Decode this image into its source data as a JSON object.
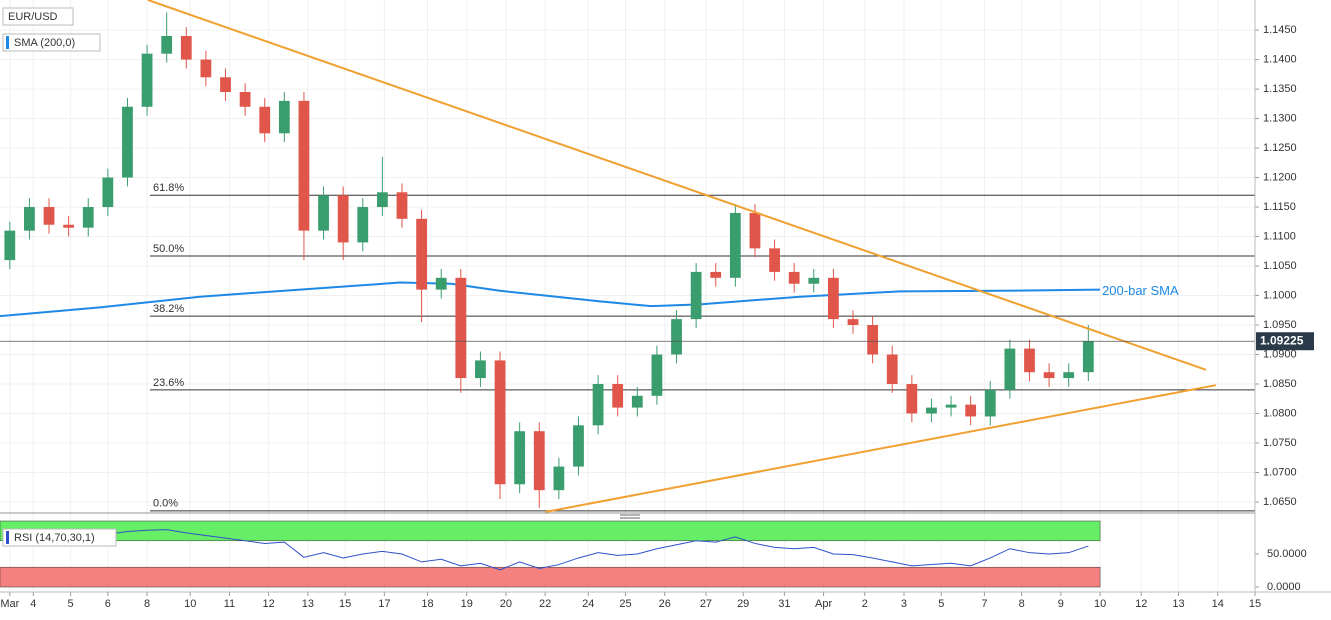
{
  "chart_data": {
    "type": "candlestick",
    "title": "EUR/USD",
    "up_color": "#3a9d6e",
    "down_color": "#e0564a",
    "xlim": [
      0,
      64
    ],
    "ylim": [
      1.0633,
      1.1501
    ],
    "grid": true,
    "xticks": [
      {
        "value": 0.5,
        "label": "Mar"
      },
      {
        "value": 1.7,
        "label": "4"
      },
      {
        "value": 3.6,
        "label": "5"
      },
      {
        "value": 5.5,
        "label": "6"
      },
      {
        "value": 7.5,
        "label": "8"
      },
      {
        "value": 9.7,
        "label": "10"
      },
      {
        "value": 11.7,
        "label": "11"
      },
      {
        "value": 13.7,
        "label": "12"
      },
      {
        "value": 15.7,
        "label": "13"
      },
      {
        "value": 17.6,
        "label": "15"
      },
      {
        "value": 19.6,
        "label": "17"
      },
      {
        "value": 21.8,
        "label": "18"
      },
      {
        "value": 23.8,
        "label": "19"
      },
      {
        "value": 25.8,
        "label": "20"
      },
      {
        "value": 27.8,
        "label": "22"
      },
      {
        "value": 30,
        "label": "24"
      },
      {
        "value": 31.9,
        "label": "25"
      },
      {
        "value": 33.9,
        "label": "26"
      },
      {
        "value": 36,
        "label": "27"
      },
      {
        "value": 37.9,
        "label": "29"
      },
      {
        "value": 40,
        "label": "31"
      },
      {
        "value": 42,
        "label": "Apr"
      },
      {
        "value": 44.1,
        "label": "2"
      },
      {
        "value": 46.1,
        "label": "3"
      },
      {
        "value": 48,
        "label": "5"
      },
      {
        "value": 50.2,
        "label": "7"
      },
      {
        "value": 52.1,
        "label": "8"
      },
      {
        "value": 54.1,
        "label": "9"
      },
      {
        "value": 56.1,
        "label": "10"
      },
      {
        "value": 58.2,
        "label": "12"
      },
      {
        "value": 60.1,
        "label": "13"
      },
      {
        "value": 62.1,
        "label": "14"
      },
      {
        "value": 64,
        "label": "15"
      }
    ],
    "yticks": [
      {
        "value": 1.065,
        "label": "1.0650"
      },
      {
        "value": 1.07,
        "label": "1.0700"
      },
      {
        "value": 1.075,
        "label": "1.0750"
      },
      {
        "value": 1.08,
        "label": "1.0800"
      },
      {
        "value": 1.085,
        "label": "1.0850"
      },
      {
        "value": 1.09,
        "label": "1.0900"
      },
      {
        "value": 1.095,
        "label": "1.0950"
      },
      {
        "value": 1.1,
        "label": "1.1000"
      },
      {
        "value": 1.105,
        "label": "1.1050"
      },
      {
        "value": 1.11,
        "label": "1.1100"
      },
      {
        "value": 1.115,
        "label": "1.1150"
      },
      {
        "value": 1.12,
        "label": "1.1200"
      },
      {
        "value": 1.125,
        "label": "1.1250"
      },
      {
        "value": 1.13,
        "label": "1.1300"
      },
      {
        "value": 1.135,
        "label": "1.1350"
      },
      {
        "value": 1.14,
        "label": "1.1400"
      },
      {
        "value": 1.145,
        "label": "1.1450"
      }
    ],
    "open": [
      1.106,
      1.111,
      1.115,
      1.112,
      1.1115,
      1.115,
      1.12,
      1.132,
      1.141,
      1.144,
      1.14,
      1.137,
      1.1345,
      1.132,
      1.1275,
      1.133,
      1.111,
      1.117,
      1.109,
      1.115,
      1.1175,
      1.113,
      1.101,
      1.103,
      1.086,
      1.089,
      1.068,
      1.077,
      1.067,
      1.071,
      1.078,
      1.085,
      1.081,
      1.083,
      1.09,
      1.096,
      1.104,
      1.103,
      1.114,
      1.108,
      1.104,
      1.102,
      1.103,
      1.096,
      1.095,
      1.09,
      1.085,
      1.08,
      1.081,
      1.0815,
      1.0795,
      1.084,
      1.091,
      1.087,
      1.086,
      1.087
    ],
    "high": [
      1.1125,
      1.1165,
      1.1165,
      1.1135,
      1.1165,
      1.1215,
      1.1335,
      1.1425,
      1.148,
      1.1455,
      1.1415,
      1.1385,
      1.136,
      1.1335,
      1.1345,
      1.1345,
      1.1185,
      1.1185,
      1.1165,
      1.1235,
      1.119,
      1.1145,
      1.1045,
      1.1045,
      1.0905,
      1.0905,
      1.0785,
      1.0785,
      1.0725,
      1.0795,
      1.0865,
      1.0865,
      1.0845,
      1.0915,
      1.0975,
      1.1055,
      1.1055,
      1.1155,
      1.1155,
      1.1095,
      1.1055,
      1.1045,
      1.1045,
      1.0975,
      1.0965,
      1.0915,
      1.0865,
      1.0825,
      1.083,
      1.083,
      1.0855,
      1.0925,
      1.0925,
      1.0885,
      1.0885,
      1.095
    ],
    "low": [
      1.1045,
      1.1095,
      1.1105,
      1.11,
      1.11,
      1.1135,
      1.1185,
      1.1305,
      1.1395,
      1.1385,
      1.1355,
      1.133,
      1.1305,
      1.126,
      1.126,
      1.106,
      1.1095,
      1.106,
      1.1075,
      1.1135,
      1.1115,
      1.0955,
      1.0995,
      1.0835,
      1.0845,
      1.0655,
      1.0665,
      1.064,
      1.0655,
      1.0695,
      1.0765,
      1.0795,
      1.0795,
      1.0815,
      1.0885,
      1.0945,
      1.1015,
      1.1015,
      1.1065,
      1.1025,
      1.1005,
      1.1005,
      1.0945,
      1.0935,
      1.0885,
      1.0835,
      1.0785,
      1.0785,
      1.0795,
      1.078,
      1.078,
      1.0825,
      1.0855,
      1.0845,
      1.0845,
      1.0855
    ],
    "close": [
      1.111,
      1.115,
      1.112,
      1.1115,
      1.115,
      1.12,
      1.132,
      1.141,
      1.144,
      1.14,
      1.137,
      1.1345,
      1.132,
      1.1275,
      1.133,
      1.111,
      1.117,
      1.109,
      1.115,
      1.1175,
      1.113,
      1.101,
      1.103,
      1.086,
      1.089,
      1.068,
      1.077,
      1.067,
      1.071,
      1.078,
      1.085,
      1.081,
      1.083,
      1.09,
      1.096,
      1.104,
      1.103,
      1.114,
      1.108,
      1.104,
      1.102,
      1.103,
      1.096,
      1.095,
      1.09,
      1.085,
      1.08,
      1.081,
      1.0815,
      1.0795,
      1.084,
      1.091,
      1.087,
      1.086,
      1.087,
      1.0922
    ],
    "sma": {
      "name": "SMA (200,0)",
      "color": "#1e88e5",
      "x": [
        0,
        5.1,
        10.2,
        15.3,
        20.4,
        23,
        25.5,
        30.6,
        33.2,
        35.7,
        40.8,
        45.9,
        51,
        56.1
      ],
      "values": [
        1.0965,
        1.098,
        1.0998,
        1.101,
        1.1022,
        1.102,
        1.1008,
        1.099,
        1.0982,
        1.0985,
        1.0998,
        1.1007,
        1.1008,
        1.101
      ],
      "annotation": "200-bar SMA"
    },
    "trendlines": [
      {
        "color": "#f0a030",
        "x": [
          7.55,
          61.5
        ],
        "y": [
          1.1501,
          1.0874
        ]
      },
      {
        "color": "#f0a030",
        "x": [
          27.8,
          62.0
        ],
        "y": [
          1.0633,
          1.0848
        ]
      }
    ],
    "fib_levels": [
      {
        "label": "61.8%",
        "value": 1.117
      },
      {
        "label": "50.0%",
        "value": 1.1067
      },
      {
        "label": "38.2%",
        "value": 1.0965
      },
      {
        "label": "23.6%",
        "value": 1.084
      },
      {
        "label": "0.0%",
        "value": 1.0635
      }
    ],
    "last_price": {
      "value": 1.09225,
      "label": "1.09225"
    },
    "rsi": {
      "name": "RSI (14,70,30,1)",
      "color": "#3050c8",
      "ylim": [
        0,
        100
      ],
      "yticks": [
        {
          "value": 50,
          "label": "50.0000"
        },
        {
          "value": 0,
          "label": "0.0000"
        }
      ],
      "bands": [
        {
          "from": 70,
          "to": 100,
          "color": "#66ee66"
        },
        {
          "from": 0,
          "to": 30,
          "color": "#f58080"
        }
      ],
      "values": [
        72,
        78,
        74,
        72,
        76,
        80,
        84,
        86,
        87,
        82,
        78,
        74,
        70,
        66,
        68,
        45,
        52,
        44,
        50,
        54,
        50,
        38,
        42,
        32,
        36,
        26,
        38,
        28,
        34,
        44,
        52,
        48,
        50,
        58,
        64,
        70,
        68,
        76,
        66,
        60,
        58,
        60,
        50,
        49,
        44,
        38,
        32,
        34,
        36,
        32,
        44,
        58,
        52,
        50,
        52,
        62
      ]
    }
  }
}
